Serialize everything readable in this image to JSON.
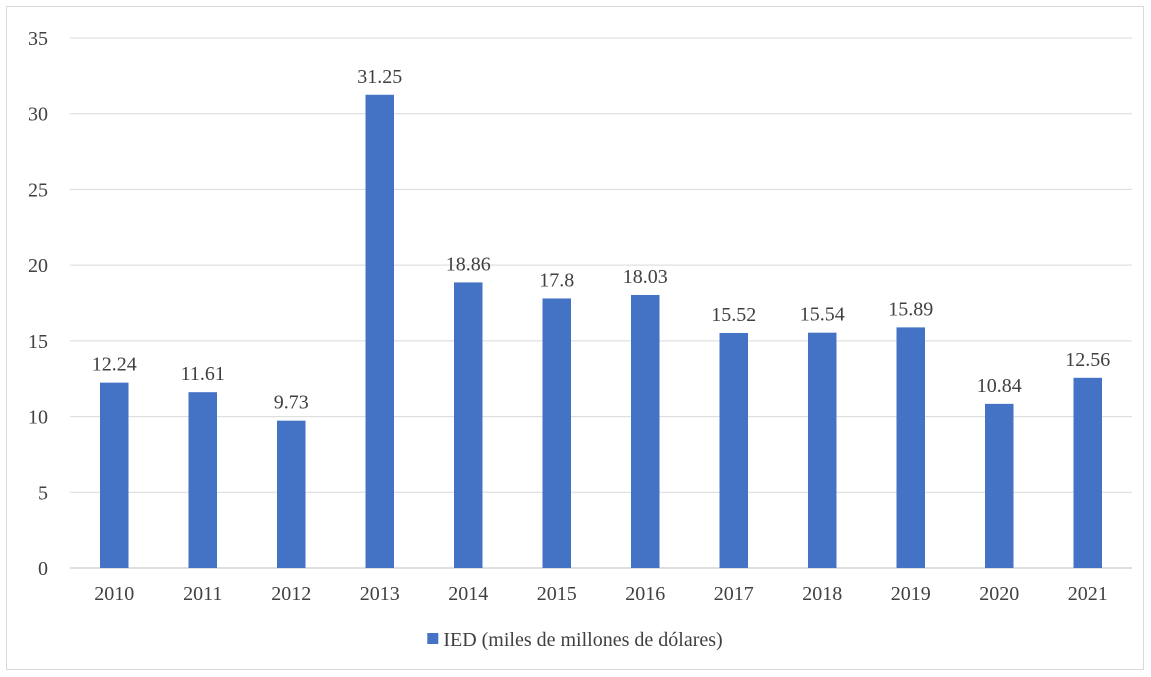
{
  "chart_data": {
    "type": "bar",
    "title": "",
    "xlabel": "",
    "ylabel": "",
    "categories": [
      "2010",
      "2011",
      "2012",
      "2013",
      "2014",
      "2015",
      "2016",
      "2017",
      "2018",
      "2019",
      "2020",
      "2021"
    ],
    "series": [
      {
        "name": "IED (miles de millones de dólares)",
        "values": [
          12.24,
          11.61,
          9.73,
          31.25,
          18.86,
          17.8,
          18.03,
          15.52,
          15.54,
          15.89,
          10.84,
          12.56
        ],
        "labels": [
          "12.24",
          "11.61",
          "9.73",
          "31.25",
          "18.86",
          "17.8",
          "18.03",
          "15.52",
          "15.54",
          "15.89",
          "10.84",
          "12.56"
        ],
        "color": "#4472c4"
      }
    ],
    "ylim": [
      0,
      35
    ],
    "yticks": [
      "0",
      "5",
      "10",
      "15",
      "20",
      "25",
      "30",
      "35"
    ],
    "grid": true,
    "legend_position": "bottom"
  }
}
